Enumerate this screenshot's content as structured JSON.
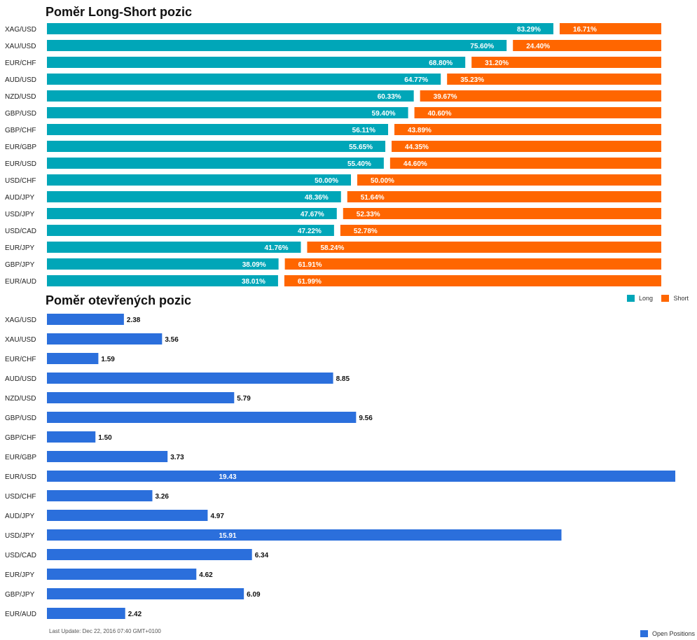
{
  "titles": {
    "long_short": "Poměr Long-Short pozic",
    "open_positions": "Poměr otevřených pozic"
  },
  "legend": {
    "long": "Long",
    "short": "Short",
    "open": "Open Positions"
  },
  "footnote": "Last Update: Dec 22, 2016 07:40 GMT+0100",
  "colors": {
    "long": "#00a6b8",
    "short": "#ff6600",
    "open": "#2b6fdc"
  },
  "chart_data": [
    {
      "type": "bar",
      "title": "Poměr Long-Short pozic",
      "orientation": "horizontal",
      "stacked": true,
      "categories": [
        "XAG/USD",
        "XAU/USD",
        "EUR/CHF",
        "AUD/USD",
        "NZD/USD",
        "GBP/USD",
        "GBP/CHF",
        "EUR/GBP",
        "EUR/USD",
        "USD/CHF",
        "AUD/JPY",
        "USD/JPY",
        "USD/CAD",
        "EUR/JPY",
        "GBP/JPY",
        "EUR/AUD"
      ],
      "series": [
        {
          "name": "Long",
          "values": [
            83.29,
            75.6,
            68.8,
            64.77,
            60.33,
            59.4,
            56.11,
            55.65,
            55.4,
            50.0,
            48.36,
            47.67,
            47.22,
            41.76,
            38.09,
            38.01
          ]
        },
        {
          "name": "Short",
          "values": [
            16.71,
            24.4,
            31.2,
            35.23,
            39.67,
            40.6,
            43.89,
            44.35,
            44.6,
            50.0,
            51.64,
            52.33,
            52.78,
            58.24,
            61.91,
            61.99
          ]
        }
      ],
      "xlim": [
        0,
        100
      ],
      "legend_position": "bottom-right"
    },
    {
      "type": "bar",
      "title": "Poměr otevřených pozic",
      "orientation": "horizontal",
      "categories": [
        "XAG/USD",
        "XAU/USD",
        "EUR/CHF",
        "AUD/USD",
        "NZD/USD",
        "GBP/USD",
        "GBP/CHF",
        "EUR/GBP",
        "EUR/USD",
        "USD/CHF",
        "AUD/JPY",
        "USD/JPY",
        "USD/CAD",
        "EUR/JPY",
        "GBP/JPY",
        "EUR/AUD"
      ],
      "series": [
        {
          "name": "Open Positions",
          "values": [
            2.38,
            3.56,
            1.59,
            8.85,
            5.79,
            9.56,
            1.5,
            3.73,
            19.43,
            3.26,
            4.97,
            15.91,
            6.34,
            4.62,
            6.09,
            2.42
          ]
        }
      ],
      "xlim": [
        0,
        19.43
      ],
      "legend_position": "bottom-right"
    }
  ]
}
